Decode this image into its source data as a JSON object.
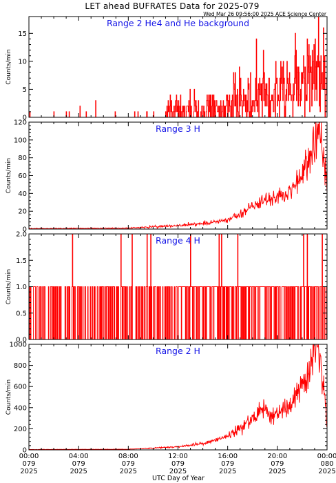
{
  "title": "LET ahead BUFRATES Data for 2025-079",
  "timestamp": "Wed Mar 26 09:56:00 2025 ACE Science Center",
  "xlabel": "UTC Day of Year",
  "colors": {
    "series": "#ff0000",
    "panel_label": "#1515e6",
    "frame": "#000000"
  },
  "x_ticks": [
    {
      "time": "00:00",
      "doy": "079",
      "year": "2025",
      "hour": 0
    },
    {
      "time": "04:00",
      "doy": "079",
      "year": "2025",
      "hour": 4
    },
    {
      "time": "08:00",
      "doy": "079",
      "year": "2025",
      "hour": 8
    },
    {
      "time": "12:00",
      "doy": "079",
      "year": "2025",
      "hour": 12
    },
    {
      "time": "16:00",
      "doy": "079",
      "year": "2025",
      "hour": 16
    },
    {
      "time": "20:00",
      "doy": "079",
      "year": "2025",
      "hour": 20
    },
    {
      "time": "00:00",
      "doy": "080",
      "year": "2025",
      "hour": 24
    }
  ],
  "chart_data": [
    {
      "type": "line",
      "label": "Range 2 He4 and He background",
      "ylabel": "Counts/min",
      "xlim": [
        0,
        24
      ],
      "ylim": [
        0,
        18
      ],
      "yticks": [
        0,
        5,
        10,
        15
      ],
      "x_unit": "hours UTC, day 079",
      "style": "noisy",
      "profile": [
        [
          0,
          0.2
        ],
        [
          4,
          0.3
        ],
        [
          8,
          0.4
        ],
        [
          12,
          0.7
        ],
        [
          14,
          1.0
        ],
        [
          16,
          1.6
        ],
        [
          18,
          3.5
        ],
        [
          20,
          5
        ],
        [
          22,
          6.5
        ],
        [
          23,
          8
        ],
        [
          23.5,
          7
        ],
        [
          24,
          5
        ]
      ],
      "peaks": [
        [
          18.3,
          14
        ],
        [
          21.5,
          12
        ],
        [
          22.4,
          14
        ],
        [
          23.3,
          18
        ],
        [
          23.7,
          16
        ]
      ]
    },
    {
      "type": "line",
      "label": "Range 3 H",
      "ylabel": "Counts/min",
      "xlim": [
        0,
        24
      ],
      "ylim": [
        0,
        120
      ],
      "yticks": [
        0,
        20,
        40,
        60,
        80,
        100,
        120
      ],
      "x_unit": "hours UTC, day 079",
      "style": "smooth",
      "profile": [
        [
          0,
          0.5
        ],
        [
          8,
          1
        ],
        [
          12,
          4
        ],
        [
          14,
          6
        ],
        [
          16,
          10
        ],
        [
          17,
          16
        ],
        [
          18,
          26
        ],
        [
          19,
          33
        ],
        [
          20,
          34
        ],
        [
          21,
          42
        ],
        [
          22,
          62
        ],
        [
          22.8,
          92
        ],
        [
          23.2,
          110
        ],
        [
          23.5,
          95
        ],
        [
          23.8,
          75
        ],
        [
          24,
          45
        ]
      ],
      "peaks": [
        [
          22.9,
          115
        ],
        [
          23.3,
          118
        ]
      ]
    },
    {
      "type": "line",
      "label": "Range 4 H",
      "ylabel": "Counts/min",
      "xlim": [
        0,
        24
      ],
      "ylim": [
        0,
        2
      ],
      "yticks": [
        0.0,
        0.5,
        1.0,
        1.5,
        2.0
      ],
      "x_unit": "hours UTC, day 079",
      "style": "binary",
      "twos": [
        3.5,
        7.4,
        8.3,
        9.5,
        9.8,
        13.0,
        15.3,
        15.5,
        16.8,
        22.1,
        22.4,
        23.6
      ]
    },
    {
      "type": "line",
      "label": "Range 2 H",
      "ylabel": "Counts/min",
      "xlim": [
        0,
        24
      ],
      "ylim": [
        0,
        1000
      ],
      "yticks": [
        0,
        200,
        400,
        600,
        800,
        1000
      ],
      "x_unit": "hours UTC, day 079",
      "style": "smooth",
      "profile": [
        [
          0,
          3
        ],
        [
          8,
          6
        ],
        [
          12,
          30
        ],
        [
          14,
          60
        ],
        [
          15,
          90
        ],
        [
          16,
          130
        ],
        [
          17,
          200
        ],
        [
          18,
          300
        ],
        [
          18.8,
          400
        ],
        [
          19.5,
          330
        ],
        [
          20,
          340
        ],
        [
          21,
          400
        ],
        [
          22,
          600
        ],
        [
          22.8,
          850
        ],
        [
          23.2,
          1000
        ],
        [
          23.5,
          780
        ],
        [
          23.8,
          520
        ],
        [
          24,
          250
        ]
      ],
      "peaks": [
        [
          22.9,
          880
        ],
        [
          23.3,
          1000
        ]
      ]
    }
  ]
}
